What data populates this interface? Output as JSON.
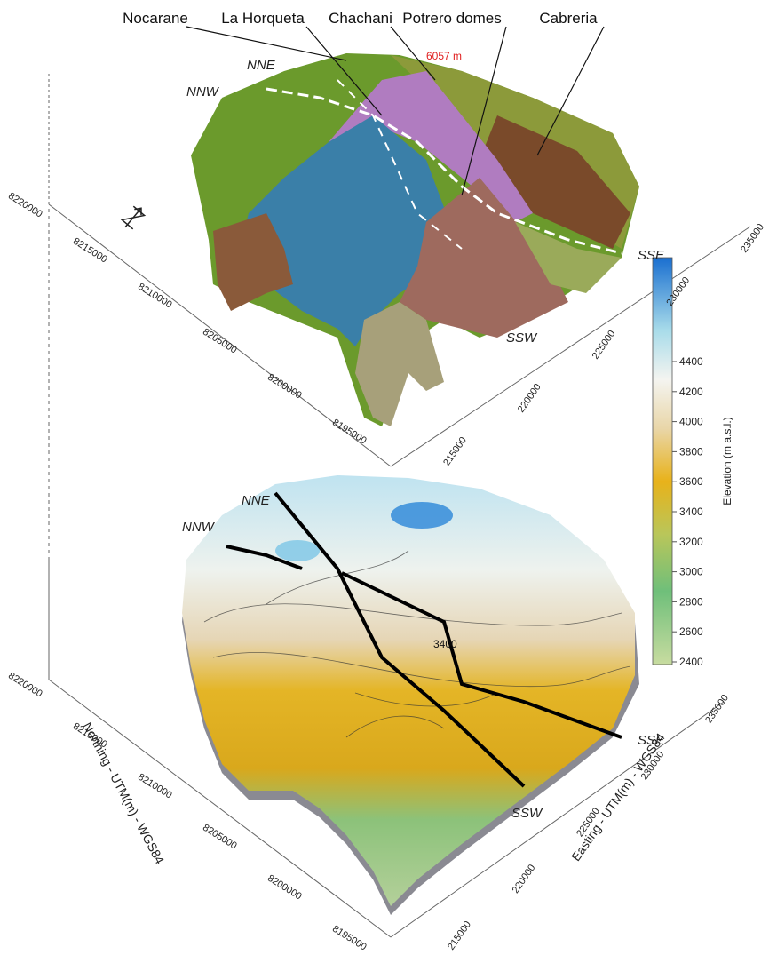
{
  "top_panel": {
    "unit_labels": [
      "Nocarane",
      "La Horqueta",
      "Chachani",
      "Potrero domes",
      "Cabreria"
    ],
    "peak_elevation": "6057 m",
    "directions": [
      "NNE",
      "NNW",
      "SSE",
      "SSW"
    ],
    "northing_ticks": [
      8220000,
      8215000,
      8210000,
      8205000,
      8200000,
      8195000
    ],
    "easting_ticks": [
      215000,
      220000,
      225000,
      230000,
      235000
    ]
  },
  "bottom_panel": {
    "directions": [
      "NNE",
      "NNW",
      "SSE",
      "SSW"
    ],
    "contour_label": "3400",
    "northing_ticks": [
      8220000,
      8215000,
      8210000,
      8205000,
      8200000,
      8195000
    ],
    "easting_ticks": [
      215000,
      220000,
      225000,
      230000,
      235000
    ],
    "northing_title": "Northing - UTM(m) - WGS84",
    "easting_title": "Easting - UTM(m) - WGS84"
  },
  "colorbar": {
    "title": "Elevation (m a.s.l.)",
    "ticks": [
      4400,
      4200,
      4000,
      3800,
      3600,
      3400,
      3200,
      3000,
      2800,
      2600,
      2400
    ]
  }
}
